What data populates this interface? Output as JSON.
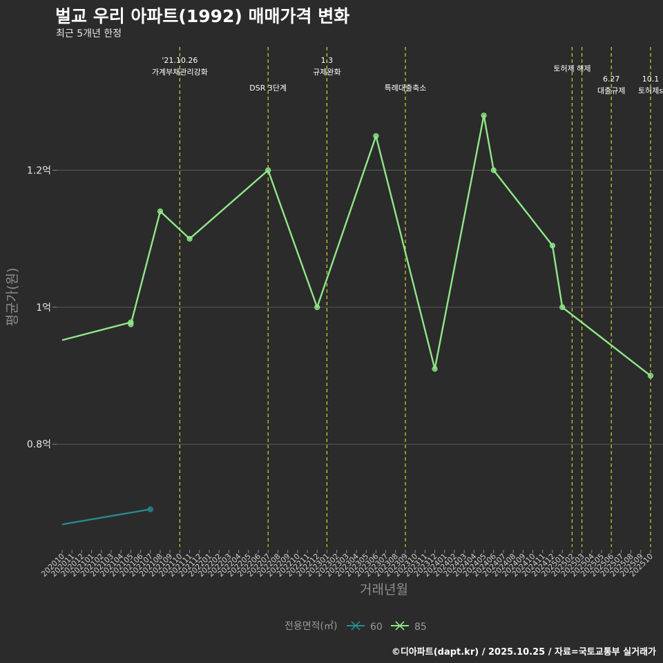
{
  "header": {
    "title": "벌교 우리 아파트(1992) 매매가격 변화",
    "subtitle": "최근 5개년 한정"
  },
  "footer": {
    "credit": "©디아파트(dapt.kr) / 2025.10.25 / 자료=국토교통부 실거래가"
  },
  "colors": {
    "background": "#2b2b2c",
    "grid": "#5a5a5a",
    "event_line": "#d4d42a",
    "series_60": "#2a8a8a",
    "series_85": "#90e887"
  },
  "chart_data": {
    "type": "line",
    "title": "벌교 우리 아파트(1992) 매매가격 변화",
    "subtitle": "최근 5개년 한정",
    "xlabel": "거래년월",
    "ylabel": "평균가(원)",
    "ylim": [
      0.65,
      1.38
    ],
    "y_ticks": [
      {
        "value": 0.8,
        "label": "0.8억"
      },
      {
        "value": 1.0,
        "label": "1억"
      },
      {
        "value": 1.2,
        "label": "1.2억"
      }
    ],
    "categories": [
      "202010",
      "202011",
      "202012",
      "202101",
      "202102",
      "202103",
      "202104",
      "202105",
      "202106",
      "202107",
      "202108",
      "202109",
      "202110",
      "202111",
      "202112",
      "202201",
      "202202",
      "202203",
      "202204",
      "202205",
      "202206",
      "202207",
      "202208",
      "202209",
      "202210",
      "202211",
      "202212",
      "202301",
      "202302",
      "202303",
      "202304",
      "202305",
      "202306",
      "202307",
      "202308",
      "202309",
      "202310",
      "202311",
      "202312",
      "202401",
      "202402",
      "202403",
      "202404",
      "202405",
      "202406",
      "202407",
      "202408",
      "202409",
      "202410",
      "202411",
      "202412",
      "202501",
      "202502",
      "202503",
      "202504",
      "202505",
      "202506",
      "202507",
      "202508",
      "202509",
      "202510"
    ],
    "series": [
      {
        "name": "60",
        "color": "#2a8a8a",
        "points": [
          {
            "x": 0,
            "y": 0.683
          },
          {
            "x": 9,
            "y": 0.705
          }
        ]
      },
      {
        "name": "85",
        "color": "#90e887",
        "points": [
          {
            "x": 0,
            "y": 0.952
          },
          {
            "x": 7,
            "y": 0.978
          },
          {
            "x": 7,
            "y": 0.975
          },
          {
            "x": 10,
            "y": 1.14
          },
          {
            "x": 13,
            "y": 1.1
          },
          {
            "x": 21,
            "y": 1.2
          },
          {
            "x": 26,
            "y": 1.0
          },
          {
            "x": 32,
            "y": 1.25
          },
          {
            "x": 38,
            "y": 0.91
          },
          {
            "x": 43,
            "y": 1.28
          },
          {
            "x": 44,
            "y": 1.2
          },
          {
            "x": 50,
            "y": 1.09
          },
          {
            "x": 51,
            "y": 1.0
          },
          {
            "x": 60,
            "y": 0.9
          }
        ]
      }
    ],
    "events": [
      {
        "x": 12,
        "lines": [
          "'21.10.26",
          "가계부채관리강화"
        ],
        "row": 0
      },
      {
        "x": 21,
        "lines": [
          "DSR 3단계"
        ],
        "row": 2
      },
      {
        "x": 27,
        "lines": [
          "1.3",
          "규제완화"
        ],
        "row": 0
      },
      {
        "x": 35,
        "lines": [
          "특례대출축소"
        ],
        "row": 2
      },
      {
        "x": 52,
        "lines": [
          "토허제 해제"
        ],
        "row": 1
      },
      {
        "x": 53,
        "lines": [],
        "row": 1
      },
      {
        "x": 56,
        "lines": [
          "6.27",
          "대출규제"
        ],
        "row": 3
      },
      {
        "x": 60,
        "lines": [
          "10.1",
          "토허제s"
        ],
        "row": 3
      }
    ],
    "legend": {
      "title": "전용면적(㎡)",
      "items": [
        "60",
        "85"
      ],
      "position": "bottom"
    }
  }
}
